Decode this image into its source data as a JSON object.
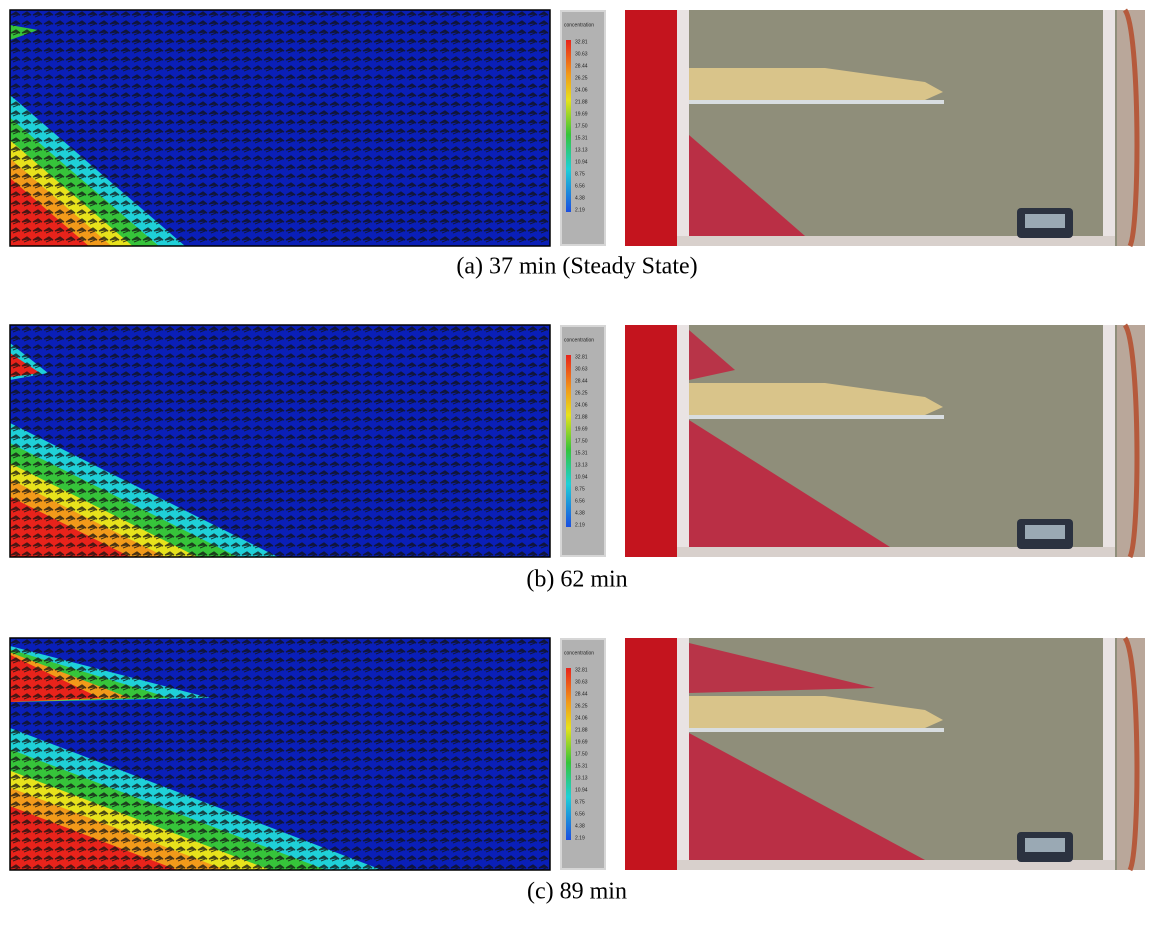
{
  "colorbar": {
    "title": "concentration",
    "labels": [
      "32.81",
      "30.63",
      "28.44",
      "26.25",
      "24.06",
      "21.88",
      "19.69",
      "17.50",
      "15.31",
      "13.13",
      "10.94",
      "8.75",
      "6.56",
      "4.38",
      "2.19"
    ]
  },
  "panels": [
    {
      "caption": "(a) 37 min (Steady State)"
    },
    {
      "caption": "(b) 62 min"
    },
    {
      "caption": "(c) 89 min"
    }
  ]
}
